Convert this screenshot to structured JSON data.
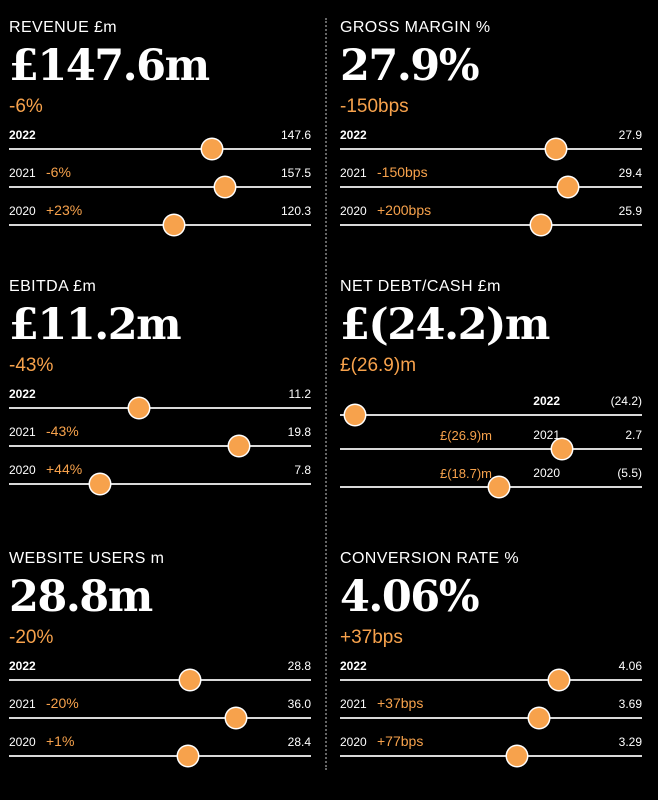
{
  "accent_color": "#f7a24c",
  "chart_data": [
    {
      "type": "bar",
      "title": "REVENUE £m",
      "headline": "£147.6m",
      "change": "-6%",
      "series": [
        {
          "year": "2022",
          "value_label": "147.6",
          "value": 147.6,
          "change": ""
        },
        {
          "year": "2021",
          "value_label": "157.5",
          "value": 157.5,
          "change": "-6%"
        },
        {
          "year": "2020",
          "value_label": "120.3",
          "value": 120.3,
          "change": "+23%"
        }
      ],
      "xlim": [
        0,
        220
      ]
    },
    {
      "type": "bar",
      "title": "GROSS MARGIN %",
      "headline": "27.9%",
      "change": "-150bps",
      "series": [
        {
          "year": "2022",
          "value_label": "27.9",
          "value": 27.9,
          "change": ""
        },
        {
          "year": "2021",
          "value_label": "29.4",
          "value": 29.4,
          "change": "-150bps"
        },
        {
          "year": "2020",
          "value_label": "25.9",
          "value": 25.9,
          "change": "+200bps"
        }
      ],
      "xlim": [
        0,
        39
      ]
    },
    {
      "type": "bar",
      "title": "EBITDA £m",
      "headline": "£11.2m",
      "change": "-43%",
      "series": [
        {
          "year": "2022",
          "value_label": "11.2",
          "value": 11.2,
          "change": ""
        },
        {
          "year": "2021",
          "value_label": "19.8",
          "value": 19.8,
          "change": "-43%"
        },
        {
          "year": "2020",
          "value_label": "7.8",
          "value": 7.8,
          "change": "+44%"
        }
      ],
      "xlim": [
        0,
        26
      ]
    },
    {
      "type": "bar",
      "title": "NET DEBT/CASH £m",
      "headline": "£(24.2)m",
      "change": "£(26.9)m",
      "series": [
        {
          "year": "2022",
          "value_label": "(24.2)",
          "value": -24.2,
          "change": ""
        },
        {
          "year": "2021",
          "value_label": "2.7",
          "value": 2.7,
          "change": "£(26.9)m"
        },
        {
          "year": "2020",
          "value_label": "(5.5)",
          "value": -5.5,
          "change": "£(18.7)m"
        }
      ],
      "xlim": [
        -26,
        13
      ]
    },
    {
      "type": "bar",
      "title": "WEBSITE USERS m",
      "headline": "28.8m",
      "change": "-20%",
      "series": [
        {
          "year": "2022",
          "value_label": "28.8",
          "value": 28.8,
          "change": ""
        },
        {
          "year": "2021",
          "value_label": "36.0",
          "value": 36.0,
          "change": "-20%"
        },
        {
          "year": "2020",
          "value_label": "28.4",
          "value": 28.4,
          "change": "+1%"
        }
      ],
      "xlim": [
        0,
        48
      ]
    },
    {
      "type": "bar",
      "title": "CONVERSION RATE %",
      "headline": "4.06%",
      "change": "+37bps",
      "series": [
        {
          "year": "2022",
          "value_label": "4.06",
          "value": 4.06,
          "change": ""
        },
        {
          "year": "2021",
          "value_label": "3.69",
          "value": 3.69,
          "change": "+37bps"
        },
        {
          "year": "2020",
          "value_label": "3.29",
          "value": 3.29,
          "change": "+77bps"
        }
      ],
      "xlim": [
        0,
        5.6
      ]
    }
  ]
}
